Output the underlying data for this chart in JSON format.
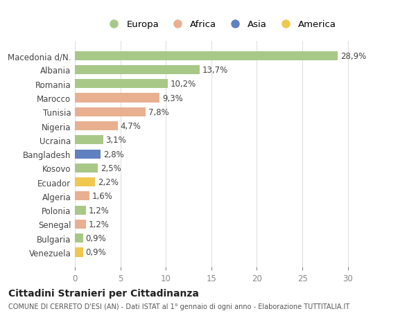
{
  "countries": [
    "Macedonia d/N.",
    "Albania",
    "Romania",
    "Marocco",
    "Tunisia",
    "Nigeria",
    "Ucraina",
    "Bangladesh",
    "Kosovo",
    "Ecuador",
    "Algeria",
    "Polonia",
    "Senegal",
    "Bulgaria",
    "Venezuela"
  ],
  "values": [
    28.9,
    13.7,
    10.2,
    9.3,
    7.8,
    4.7,
    3.1,
    2.8,
    2.5,
    2.2,
    1.6,
    1.2,
    1.2,
    0.9,
    0.9
  ],
  "labels": [
    "28,9%",
    "13,7%",
    "10,2%",
    "9,3%",
    "7,8%",
    "4,7%",
    "3,1%",
    "2,8%",
    "2,5%",
    "2,2%",
    "1,6%",
    "1,2%",
    "1,2%",
    "0,9%",
    "0,9%"
  ],
  "continents": [
    "Europa",
    "Europa",
    "Europa",
    "Africa",
    "Africa",
    "Africa",
    "Europa",
    "Asia",
    "Europa",
    "America",
    "Africa",
    "Europa",
    "Africa",
    "Europa",
    "America"
  ],
  "colors": {
    "Europa": "#a8c888",
    "Africa": "#e8b090",
    "Asia": "#6080c0",
    "America": "#f0c850"
  },
  "background_color": "#ffffff",
  "grid_color": "#e0e0e0",
  "title": "Cittadini Stranieri per Cittadinanza",
  "subtitle": "COMUNE DI CERRETO D'ESI (AN) - Dati ISTAT al 1° gennaio di ogni anno - Elaborazione TUTTITALIA.IT",
  "xlim": [
    0,
    32
  ],
  "xticks": [
    0,
    5,
    10,
    15,
    20,
    25,
    30
  ],
  "legend_order": [
    "Europa",
    "Africa",
    "Asia",
    "America"
  ]
}
